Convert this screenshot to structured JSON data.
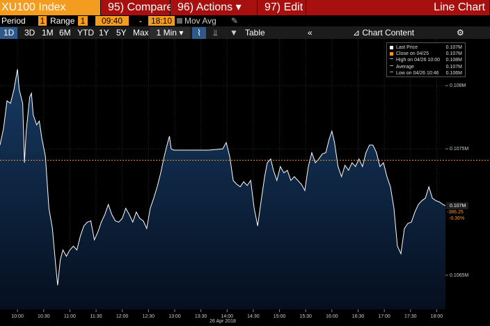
{
  "toolbar": {
    "ticker": "XU100 Index",
    "compare": "95) Compare",
    "actions": "96) Actions",
    "edit": "97) Edit",
    "view": "Line Chart"
  },
  "settings": {
    "period_label": "Period",
    "period": "1",
    "range_label": "Range",
    "range": "1",
    "range_sep": "-",
    "mov_avg": "Mov Avg"
  },
  "ranges": [
    "1D",
    "3D",
    "1M",
    "6M",
    "YTD",
    "1Y",
    "5Y",
    "Max"
  ],
  "interval": "1 Min",
  "table": "Table",
  "chart_content": "Chart Content",
  "tools": [
    "Track",
    "Annotate",
    "News",
    "Zoom"
  ],
  "legend": [
    {
      "value": "0.107M"
    },
    {
      "label": "Close on 04/25",
      "value": "0.107M"
    },
    {
      "label": "High on 04/26 10:00",
      "value": "0.108M"
    },
    {
      "label": "Average",
      "value": "0.107M"
    },
    {
      "label": "Low on 04/26 10:46",
      "value": "0.106M"
    }
  ],
  "chart_data": {
    "type": "line",
    "x_label": "26 Apr 2018",
    "x": [
      "09:40",
      "09:44",
      "09:48",
      "09:52",
      "09:56",
      "10:00",
      "10:02",
      "10:06",
      "10:08",
      "10:10",
      "10:14",
      "10:16",
      "10:18",
      "10:22",
      "10:25",
      "10:28",
      "10:32",
      "10:36",
      "10:40",
      "10:44",
      "10:46",
      "10:49",
      "10:52",
      "10:56",
      "11:00",
      "11:04",
      "11:08",
      "11:12",
      "11:16",
      "11:20",
      "11:24",
      "11:28",
      "11:32",
      "11:36",
      "11:40",
      "11:44",
      "11:48",
      "11:52",
      "11:56",
      "12:00",
      "12:04",
      "12:08",
      "12:12",
      "12:16",
      "12:20",
      "12:24",
      "12:28",
      "12:32",
      "12:36",
      "12:40",
      "12:44",
      "12:48",
      "12:52",
      "12:54",
      "12:56",
      "12:59",
      "13:07",
      "13:23",
      "13:39",
      "13:55",
      "13:59",
      "14:03",
      "14:07",
      "14:11",
      "14:15",
      "14:19",
      "14:23",
      "14:27",
      "14:31",
      "14:35",
      "14:39",
      "14:43",
      "14:46",
      "14:50",
      "14:53",
      "14:57",
      "15:01",
      "15:05",
      "15:09",
      "15:13",
      "15:17",
      "15:21",
      "15:25",
      "15:29",
      "15:33",
      "15:37",
      "15:41",
      "15:45",
      "15:49",
      "15:53",
      "15:57",
      "16:00",
      "16:03",
      "16:07",
      "16:11",
      "16:15",
      "16:19",
      "16:23",
      "16:27",
      "16:31",
      "16:35",
      "16:39",
      "16:43",
      "16:47",
      "16:51",
      "16:55",
      "16:59",
      "17:03",
      "17:07",
      "17:11",
      "17:15",
      "17:19",
      "17:23",
      "17:27",
      "17:31",
      "17:35",
      "17:39",
      "17:43",
      "17:47",
      "17:51",
      "17:55",
      "17:59",
      "18:03",
      "18:07",
      "18:10"
    ],
    "series": [
      {
        "name": "Last Price",
        "color": "#ffffff",
        "fill": "#173a63",
        "values": [
          0.10753,
          0.10766,
          0.10788,
          0.10786,
          0.10797,
          0.10813,
          0.10797,
          0.10786,
          0.10739,
          0.10764,
          0.10791,
          0.10794,
          0.10777,
          0.10769,
          0.10772,
          0.10758,
          0.10744,
          0.10703,
          0.10687,
          0.10656,
          0.10642,
          0.10662,
          0.1067,
          0.10665,
          0.1067,
          0.10673,
          0.1067,
          0.10681,
          0.10689,
          0.10692,
          0.10693,
          0.10678,
          0.10684,
          0.10692,
          0.10698,
          0.10706,
          0.10698,
          0.10693,
          0.10692,
          0.10695,
          0.10703,
          0.10698,
          0.10692,
          0.107,
          0.10695,
          0.10693,
          0.10687,
          0.10703,
          0.10711,
          0.1072,
          0.10731,
          0.10744,
          0.10755,
          0.1076,
          0.1075,
          0.10749,
          0.10749,
          0.10749,
          0.10749,
          0.1075,
          0.10755,
          0.10744,
          0.10725,
          0.10722,
          0.1072,
          0.10724,
          0.10721,
          0.10725,
          0.10703,
          0.10689,
          0.10709,
          0.10728,
          0.10739,
          0.10742,
          0.10733,
          0.10725,
          0.10736,
          0.10731,
          0.10733,
          0.10725,
          0.10728,
          0.10725,
          0.10722,
          0.10717,
          0.10736,
          0.10747,
          0.10739,
          0.10742,
          0.10746,
          0.10747,
          0.10758,
          0.10764,
          0.10755,
          0.10736,
          0.10728,
          0.10737,
          0.10733,
          0.10739,
          0.10736,
          0.10742,
          0.10736,
          0.10747,
          0.10753,
          0.10753,
          0.10747,
          0.10736,
          0.10739,
          0.10728,
          0.1072,
          0.10703,
          0.10673,
          0.10667,
          0.10687,
          0.10691,
          0.10692,
          0.107,
          0.10706,
          0.10709,
          0.10711,
          0.1072,
          0.10711,
          0.10709,
          0.10708,
          0.10706,
          0.10705
        ]
      }
    ],
    "close_value": 0.10741,
    "close_color": "#f7941d",
    "last_label": "0.107M",
    "change": "-386.25",
    "change_pct": "-0.36%",
    "xlim": [
      "09:40",
      "18:10"
    ],
    "xticks": [
      "10:00",
      "10:30",
      "11:00",
      "11:30",
      "12:00",
      "12:30",
      "13:00",
      "13:30",
      "14:00",
      "14:30",
      "15:00",
      "15:30",
      "16:00",
      "16:30",
      "17:00",
      "17:30",
      "18:00"
    ],
    "ylim": [
      0.10623,
      0.10837
    ],
    "yticks": [
      {
        "value": 0.1065,
        "label": "0.1065M"
      },
      {
        "value": 0.1075,
        "label": "0.1075M"
      },
      {
        "value": 0.108,
        "label": "0.108M"
      }
    ],
    "grid": true
  }
}
